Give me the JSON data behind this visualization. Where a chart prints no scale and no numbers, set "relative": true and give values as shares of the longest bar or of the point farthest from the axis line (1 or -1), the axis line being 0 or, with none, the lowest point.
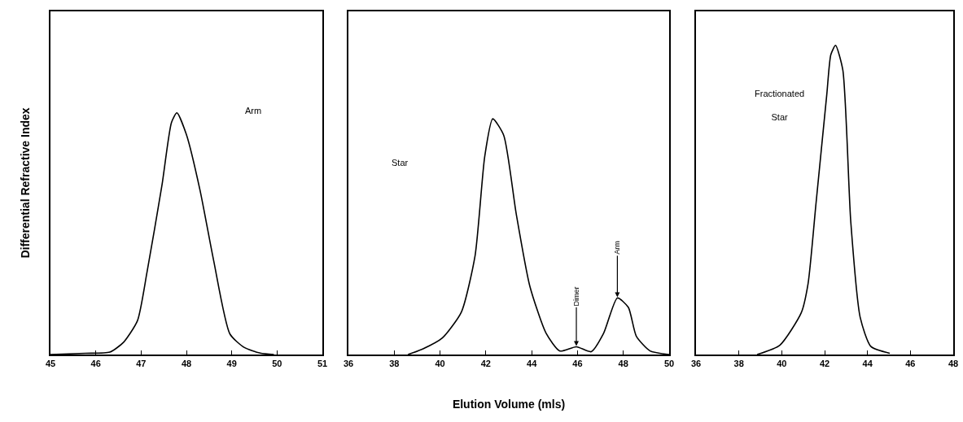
{
  "chart_data": [
    {
      "type": "line",
      "relative": true,
      "ylabel": "Differential Refractive Index",
      "xlim": [
        45,
        51
      ],
      "xticks": [
        45,
        46,
        47,
        48,
        49,
        50,
        51
      ],
      "grid": false,
      "legend": false,
      "marker": "none",
      "line_style": "solid",
      "tick_labels": "x",
      "series": [
        {
          "name": "Arm",
          "color": "#000000",
          "x": [
            45,
            45.77,
            46.31,
            46.61,
            46.92,
            47.13,
            47.46,
            47.67,
            47.79,
            48.0,
            48.3,
            48.6,
            48.96,
            49.27,
            49.63,
            49.93
          ],
          "values": [
            0,
            0.005,
            0.01,
            0.05,
            0.14,
            0.34,
            0.7,
            0.96,
            1,
            0.91,
            0.68,
            0.39,
            0.085,
            0.03,
            0.006,
            0
          ]
        }
      ]
    },
    {
      "type": "line",
      "relative": true,
      "xlabel": "Elution Volume (mls)",
      "xlim": [
        36,
        50
      ],
      "xticks": [
        36,
        38,
        40,
        42,
        44,
        46,
        48,
        50
      ],
      "grid": false,
      "legend": false,
      "marker": "none",
      "line_style": "solid",
      "tick_labels": "x",
      "annotations": [
        {
          "text": "Dimer",
          "x": 45.95,
          "y": 0.033
        },
        {
          "text": "Arm",
          "x": 47.74,
          "y": 0.24
        }
      ],
      "series": [
        {
          "name": "Star",
          "color": "#000000",
          "x": [
            38.6,
            39.26,
            40.1,
            40.93,
            41.53,
            41.95,
            42.3,
            42.78,
            43.32,
            43.92,
            44.63,
            45.23,
            45.95,
            46.6,
            47.14,
            47.74,
            48.22,
            48.57,
            49.17,
            50
          ],
          "values": [
            0,
            0.024,
            0.07,
            0.18,
            0.42,
            0.84,
            1,
            0.93,
            0.6,
            0.29,
            0.09,
            0.015,
            0.033,
            0.012,
            0.09,
            0.24,
            0.2,
            0.077,
            0.015,
            0
          ]
        }
      ]
    },
    {
      "type": "line",
      "relative": true,
      "xlim": [
        36,
        48
      ],
      "xticks": [
        36,
        38,
        40,
        42,
        44,
        46,
        48
      ],
      "grid": false,
      "legend": false,
      "marker": "none",
      "line_style": "solid",
      "tick_labels": "x",
      "series": [
        {
          "name": "Fractionated Star",
          "color": "#000000",
          "x": [
            38.85,
            39.91,
            40.91,
            41.23,
            41.6,
            42.1,
            42.29,
            42.51,
            42.85,
            43.22,
            43.66,
            44.16,
            45.04
          ],
          "values": [
            0,
            0.03,
            0.135,
            0.23,
            0.49,
            0.84,
            0.97,
            1,
            0.92,
            0.43,
            0.12,
            0.026,
            0.004
          ]
        }
      ]
    }
  ]
}
